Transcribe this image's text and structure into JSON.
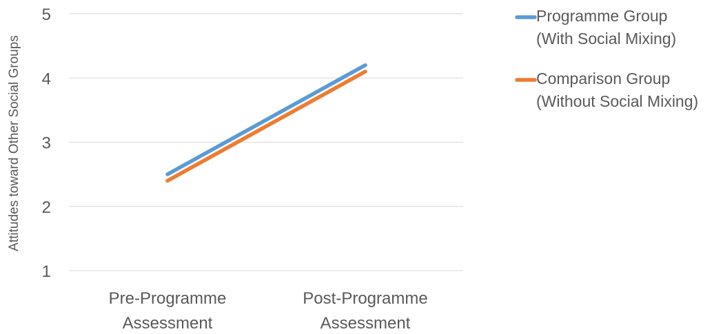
{
  "chart_data": {
    "type": "line",
    "categories": [
      [
        "Pre-Programme",
        "Assessment"
      ],
      [
        "Post-Programme",
        "Assessment"
      ]
    ],
    "series": [
      {
        "name_lines": [
          "Programme Group",
          "(With Social Mixing)"
        ],
        "values": [
          2.5,
          4.2
        ],
        "color": "#5b9bd5"
      },
      {
        "name_lines": [
          "Comparison Group",
          "(Without Social Mixing)"
        ],
        "values": [
          2.4,
          4.1
        ],
        "color": "#ed7d31"
      }
    ],
    "ylabel": "Attitudes toward Other Social Groups",
    "ylim": [
      1,
      5
    ],
    "yticks": [
      1,
      2,
      3,
      4,
      5
    ],
    "grid": true,
    "legend_position": "right"
  }
}
